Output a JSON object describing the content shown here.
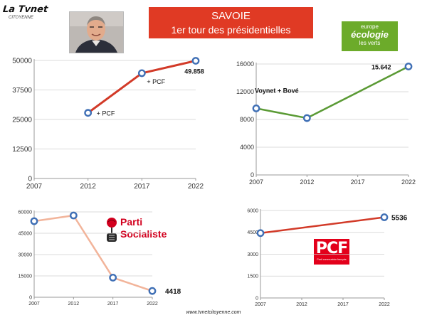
{
  "header": {
    "title_line1": "SAVOIE",
    "title_line2": "1er tour des présidentielles",
    "accent": "#e03a24"
  },
  "logos": {
    "site": {
      "main": "La Tvnet",
      "sub": "CITOYENNE"
    },
    "photo": {
      "icon": "portrait-photo"
    },
    "eelv": {
      "line1": "europe",
      "line2": "écologie",
      "line3": "les verts",
      "color": "#6cab2a"
    },
    "ps": {
      "line1": "Parti",
      "line2": "Socialiste",
      "icon": "rose-fist-icon",
      "color": "#d2001e"
    },
    "pcf": {
      "main": "PCF",
      "sub": "Parti communiste français",
      "color": "#e3001b"
    }
  },
  "footer": {
    "text": "www.tvnetcitoyenne.com"
  },
  "chart_data": [
    {
      "type": "line",
      "x": [
        2012,
        2017,
        2022
      ],
      "y": [
        27800,
        44600,
        49858
      ],
      "xlim": [
        2007,
        2022
      ],
      "ylim": [
        0,
        50000
      ],
      "x_ticks": [
        "2007",
        "2012",
        "2017",
        "2022"
      ],
      "y_ticks": [
        "0",
        "12500",
        "25000",
        "37500",
        "50000"
      ],
      "grid": true,
      "line_color": "#d23a28",
      "point_labels": [
        "+ PCF",
        "+ PCF",
        "49.858"
      ]
    },
    {
      "type": "line",
      "x": [
        2007,
        2012,
        2022
      ],
      "y": [
        9600,
        8200,
        15642
      ],
      "xlim": [
        2007,
        2022
      ],
      "ylim": [
        0,
        16000
      ],
      "x_ticks": [
        "2007",
        "2012",
        "2017",
        "2022"
      ],
      "y_ticks": [
        "0",
        "4000",
        "8000",
        "12000",
        "16000"
      ],
      "grid": true,
      "line_color": "#5a9a34",
      "point_labels": [
        "Voynet + Bové",
        "",
        "15.642"
      ]
    },
    {
      "type": "line",
      "x": [
        2007,
        2012,
        2017,
        2022
      ],
      "y": [
        53500,
        57500,
        13800,
        4418
      ],
      "xlim": [
        2007,
        2022
      ],
      "ylim": [
        0,
        60000
      ],
      "x_ticks": [
        "2007",
        "2012",
        "2017",
        "2022"
      ],
      "y_ticks": [
        "0",
        "15000",
        "30000",
        "45000",
        "60000"
      ],
      "grid": true,
      "line_color": "#f2b49a",
      "point_labels": [
        "",
        "",
        "",
        "4418"
      ]
    },
    {
      "type": "line",
      "x": [
        2007,
        2022
      ],
      "y": [
        4450,
        5536
      ],
      "xlim": [
        2007,
        2022
      ],
      "ylim": [
        0,
        6000
      ],
      "x_ticks": [
        "2007",
        "2012",
        "2017",
        "2022"
      ],
      "y_ticks": [
        "0",
        "1500",
        "3000",
        "4500",
        "6000"
      ],
      "grid": true,
      "line_color": "#d23a28",
      "point_labels": [
        "",
        "5536"
      ]
    }
  ]
}
